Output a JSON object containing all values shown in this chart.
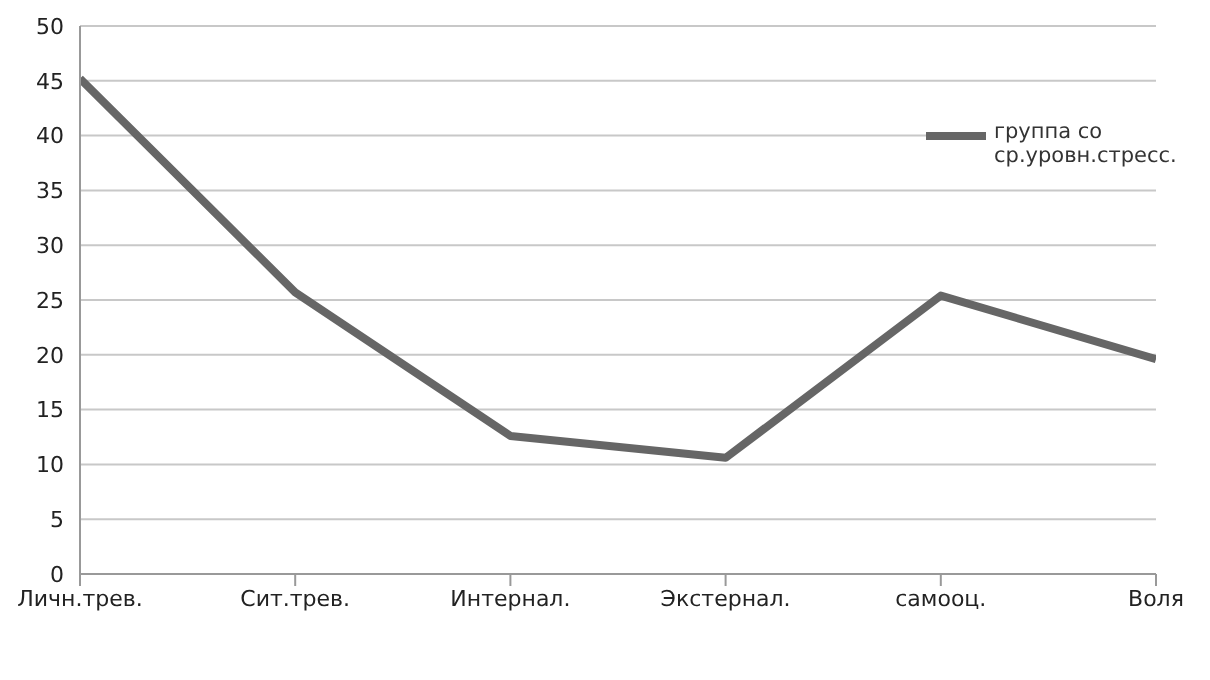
{
  "chart_data": {
    "type": "line",
    "categories": [
      "Личн.трев.",
      "Сит.трев.",
      "Интернал.",
      "Экстернал.",
      "самооц.",
      "Воля"
    ],
    "series": [
      {
        "name": "группа со ср.уровн.стресс.",
        "color": "#666666",
        "values": [
          45.2,
          25.7,
          12.6,
          10.6,
          25.4,
          19.6
        ]
      }
    ],
    "ylim": [
      0,
      50
    ],
    "yticks": [
      0,
      5,
      10,
      15,
      20,
      25,
      30,
      35,
      40,
      45,
      50
    ],
    "grid": "y",
    "legend": "right",
    "marker": "none",
    "line_style": "solid"
  }
}
